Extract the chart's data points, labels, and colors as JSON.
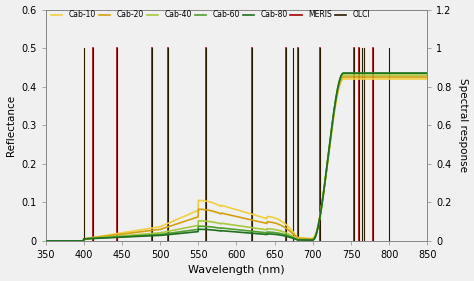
{
  "xlabel": "Wavelength (nm)",
  "ylabel_left": "Reflectance",
  "ylabel_right": "Spectral response",
  "xlim": [
    350,
    850
  ],
  "ylim_left": [
    0,
    0.6
  ],
  "ylim_right": [
    0,
    1.2
  ],
  "xticks": [
    350,
    400,
    450,
    500,
    550,
    600,
    650,
    700,
    750,
    800,
    850
  ],
  "yticks_left": [
    0,
    0.1,
    0.2,
    0.3,
    0.4,
    0.5,
    0.6
  ],
  "yticks_right": [
    0,
    0.2,
    0.4,
    0.6,
    0.8,
    1.0,
    1.2
  ],
  "cab_colors": {
    "Cab-10": "#f0d040",
    "Cab-20": "#d4a010",
    "Cab-40": "#a8c840",
    "Cab-60": "#50a030",
    "Cab-80": "#207020"
  },
  "cab_vals": [
    10,
    20,
    40,
    60,
    80
  ],
  "cab_labels": [
    "Cab-10",
    "Cab-20",
    "Cab-40",
    "Cab-60",
    "Cab-80"
  ],
  "meris_color": "#aa0000",
  "olci_color": "#2a1a00",
  "meris_bands": [
    412,
    443,
    490,
    510,
    560,
    620,
    665,
    681,
    709,
    754,
    761,
    779
  ],
  "olci_bands": [
    400,
    412,
    443,
    490,
    510,
    560,
    620,
    665,
    674,
    681,
    709,
    754,
    761,
    764,
    767,
    779,
    800
  ],
  "background": "#f0f0f0"
}
